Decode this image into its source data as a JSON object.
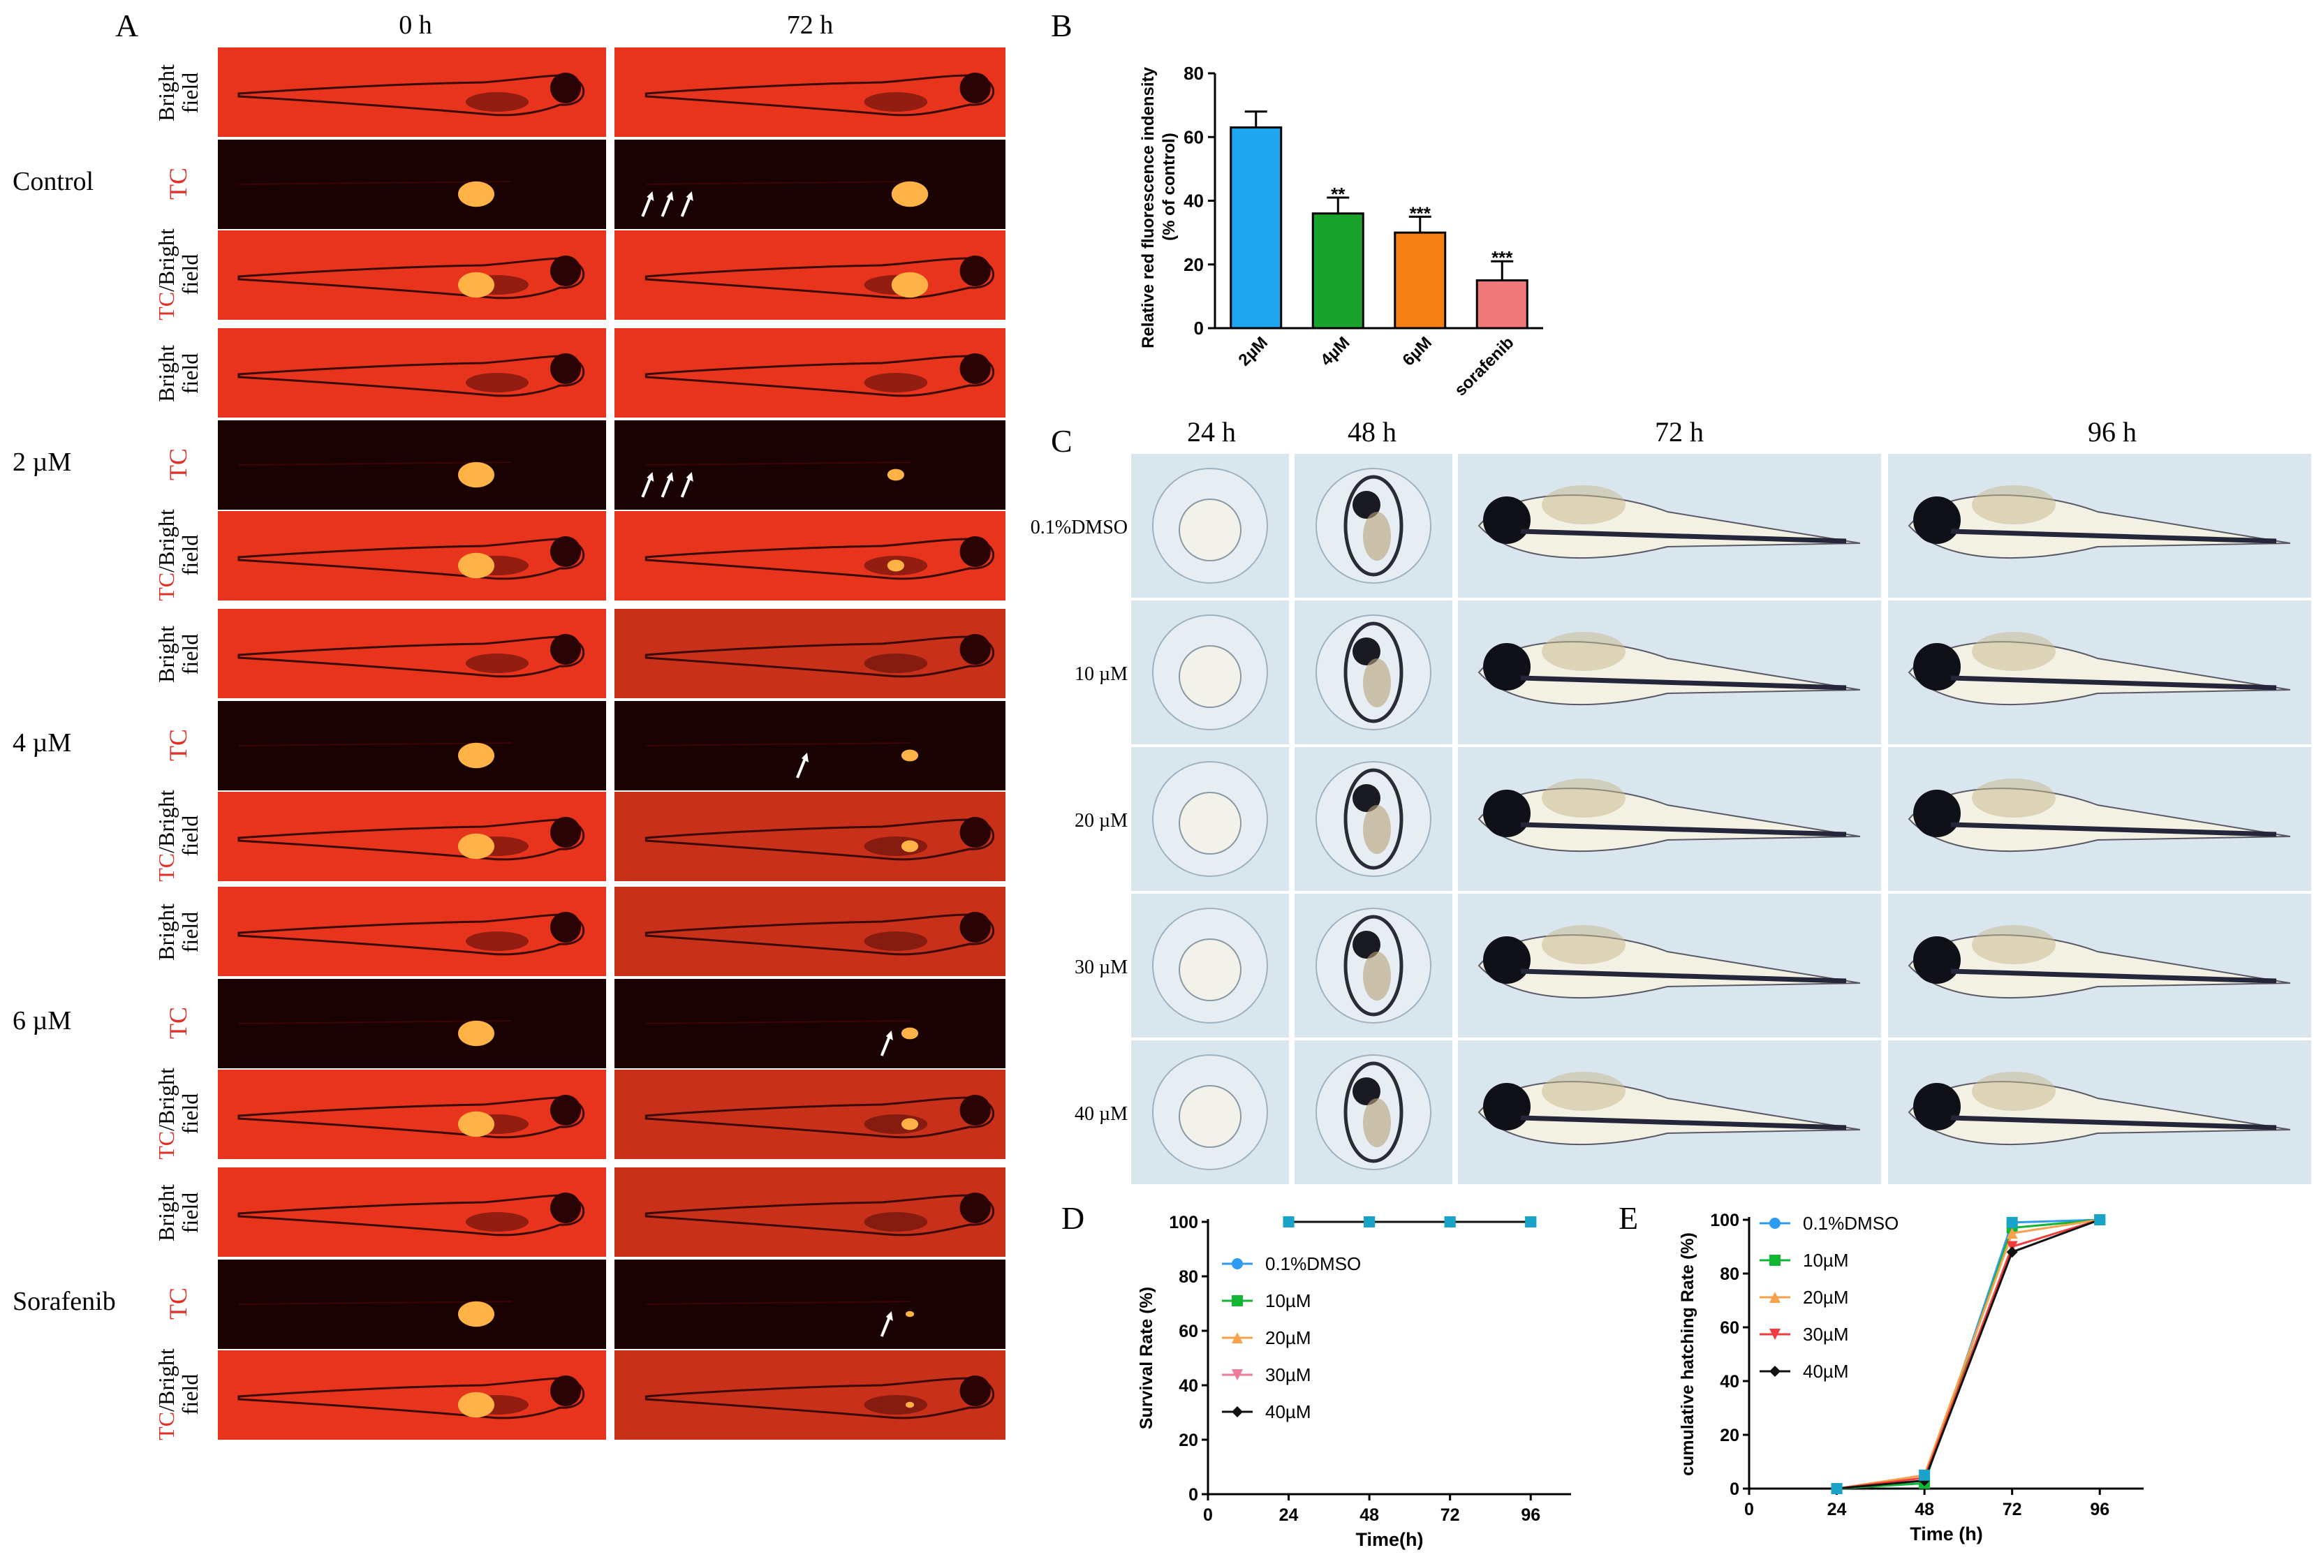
{
  "panels": {
    "A": {
      "letter": "A",
      "col_headers": [
        "0 h",
        "72 h"
      ],
      "groups": [
        {
          "label": "Control",
          "arrows_72h": 3
        },
        {
          "label": "2 µM",
          "arrows_72h": 3
        },
        {
          "label": "4 µM",
          "arrows_72h": 1
        },
        {
          "label": "6 µM",
          "arrows_72h": 1
        },
        {
          "label": "Sorafenib",
          "arrows_72h": 1
        }
      ],
      "row_labels": {
        "bright_line1": "Bright",
        "bright_line2": "field",
        "tc": "TC",
        "tcbright_red": "TC",
        "tcbright_black": "/Bright",
        "tcbright_line2": "field"
      }
    },
    "B": {
      "letter": "B"
    },
    "C": {
      "letter": "C",
      "col_headers": [
        "24 h",
        "48 h",
        "72 h",
        "96 h"
      ],
      "row_labels": [
        "0.1%DMSO",
        "10 µM",
        "20 µM",
        "30 µM",
        "40 µM"
      ]
    },
    "D": {
      "letter": "D"
    },
    "E": {
      "letter": "E"
    }
  },
  "colors": {
    "fluor_red": "#e8341c",
    "dark_red": "#1a0202",
    "signal_orange": "#ffb347",
    "c_background": "#d9e6ee"
  },
  "chart_data": [
    {
      "id": "B",
      "type": "bar",
      "categories": [
        "2µM",
        "4µM",
        "6µM",
        "sorafenib"
      ],
      "values": [
        63,
        36,
        30,
        15
      ],
      "errors": [
        5,
        5,
        5,
        6
      ],
      "significance": [
        "",
        "**",
        "***",
        "***"
      ],
      "colors": [
        "#1ea7f0",
        "#1aa32c",
        "#f57f12",
        "#f07a7a"
      ],
      "ylabel": "Relative red fluorescence indensity",
      "ylabel2": "(% of control)",
      "yticks": [
        0,
        20,
        40,
        60,
        80
      ],
      "ylim": [
        0,
        80
      ]
    },
    {
      "id": "D",
      "type": "line",
      "x": [
        24,
        48,
        72,
        96
      ],
      "xticks": [
        0,
        24,
        48,
        72,
        96
      ],
      "yticks": [
        0,
        20,
        40,
        60,
        80,
        100
      ],
      "xlim": [
        0,
        108
      ],
      "ylim": [
        0,
        100
      ],
      "xlabel": "Time(h)",
      "ylabel": "Survival Rate (%)",
      "series": [
        {
          "name": "0.1%DMSO",
          "color": "#2f9bf0",
          "marker": "circle",
          "values": [
            100,
            100,
            100,
            100
          ]
        },
        {
          "name": "10µM",
          "color": "#13b534",
          "marker": "square",
          "values": [
            100,
            100,
            100,
            100
          ]
        },
        {
          "name": "20µM",
          "color": "#f7a24a",
          "marker": "triangle",
          "values": [
            100,
            100,
            100,
            100
          ]
        },
        {
          "name": "30µM",
          "color": "#f07a9a",
          "marker": "triangle-down",
          "values": [
            100,
            100,
            100,
            100
          ]
        },
        {
          "name": "40µM",
          "color": "#111111",
          "marker": "diamond",
          "values": [
            100,
            100,
            100,
            100
          ]
        }
      ],
      "top_marker_color": "#1aa3c8",
      "legend_position": "left-middle"
    },
    {
      "id": "E",
      "type": "line",
      "x": [
        24,
        48,
        72,
        96
      ],
      "xticks": [
        0,
        24,
        48,
        72,
        96
      ],
      "yticks": [
        0,
        20,
        40,
        60,
        80,
        100
      ],
      "xlim": [
        0,
        108
      ],
      "ylim": [
        0,
        100
      ],
      "xlabel": "Time (h)",
      "ylabel": "cumulative hatching Rate (%)",
      "series": [
        {
          "name": "0.1%DMSO",
          "color": "#2f9bf0",
          "marker": "circle",
          "values": [
            0,
            2,
            99,
            100
          ]
        },
        {
          "name": "10µM",
          "color": "#13b534",
          "marker": "square",
          "values": [
            0,
            2,
            97,
            100
          ]
        },
        {
          "name": "20µM",
          "color": "#f7a24a",
          "marker": "triangle",
          "values": [
            0,
            5,
            95,
            100
          ]
        },
        {
          "name": "30µM",
          "color": "#f03c3c",
          "marker": "triangle-down",
          "values": [
            0,
            4,
            90,
            100
          ]
        },
        {
          "name": "40µM",
          "color": "#111111",
          "marker": "diamond",
          "values": [
            0,
            3,
            88,
            100
          ]
        }
      ],
      "top_marker_color": "#1aa3c8",
      "legend_position": "top-left"
    }
  ]
}
